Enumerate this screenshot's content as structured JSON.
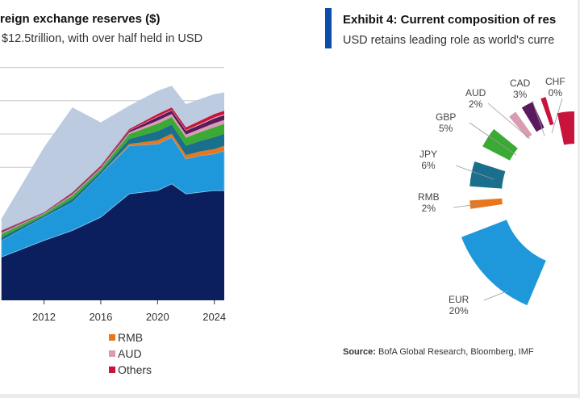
{
  "chart_data": [
    {
      "type": "area",
      "stacked": true,
      "title": "reign exchange reserves ($)",
      "subtitle": "$12.5trillion, with over half held in USD",
      "xlabel": "",
      "ylabel": "",
      "x_ticks": [
        "2012",
        "2016",
        "2020",
        "2024"
      ],
      "xlim": [
        2008.9,
        2024.7
      ],
      "ylim": [
        0,
        14
      ],
      "grid": true,
      "legend_placement": "bottom",
      "x": [
        2009,
        2012,
        2014,
        2016,
        2018,
        2020,
        2021,
        2022,
        2023,
        2024,
        2024.7
      ],
      "series": [
        {
          "color": "#0b1f5e",
          "values": [
            2.6,
            3.6,
            4.2,
            5.0,
            6.4,
            6.6,
            7.0,
            6.4,
            6.5,
            6.6,
            6.6
          ]
        },
        {
          "color": "#1e98da",
          "values": [
            1.0,
            1.4,
            1.7,
            2.6,
            2.9,
            2.8,
            2.8,
            2.1,
            2.2,
            2.2,
            2.4
          ]
        },
        {
          "name": "RMB",
          "color": "#e8761c",
          "values": [
            0,
            0,
            0,
            0,
            0.1,
            0.22,
            0.22,
            0.23,
            0.25,
            0.29,
            0.29
          ]
        },
        {
          "color": "#1a6f8c",
          "values": [
            0.2,
            0.1,
            0.2,
            0.15,
            0.3,
            0.55,
            0.55,
            0.57,
            0.63,
            0.72,
            0.72
          ]
        },
        {
          "color": "#3aaa35",
          "values": [
            0.2,
            0.1,
            0.2,
            0.15,
            0.3,
            0.45,
            0.45,
            0.48,
            0.53,
            0.6,
            0.6
          ]
        },
        {
          "name": "AUD",
          "color": "#d99cb2",
          "values": [
            0.07,
            0.03,
            0.07,
            0.06,
            0.1,
            0.18,
            0.18,
            0.19,
            0.2,
            0.24,
            0.24
          ]
        },
        {
          "color": "#5b1a60",
          "values": [
            0.07,
            0.03,
            0.07,
            0.06,
            0.1,
            0.22,
            0.22,
            0.23,
            0.25,
            0.29,
            0.29
          ]
        },
        {
          "color": "#f0c8a0",
          "values": [
            0.01,
            0.01,
            0.01,
            0.01,
            0.02,
            0.03,
            0.03,
            0.03,
            0.04,
            0.05,
            0.05
          ]
        },
        {
          "name": "Others",
          "color": "#c8143c",
          "values": [
            0.05,
            0.03,
            0.05,
            0.07,
            0.08,
            0.15,
            0.15,
            0.17,
            0.2,
            0.21,
            0.21
          ]
        },
        {
          "color": "#bccbe0",
          "values": [
            0.7,
            3.9,
            5.1,
            2.6,
            1.4,
            1.4,
            1.3,
            1.4,
            1.3,
            1.2,
            1.1
          ]
        }
      ],
      "legend": [
        {
          "label": "RMB",
          "color": "#e8761c"
        },
        {
          "label": "AUD",
          "color": "#d99cb2"
        },
        {
          "label": "Others",
          "color": "#c8143c"
        }
      ]
    },
    {
      "type": "pie",
      "title": "Exhibit 4: Current composition of res",
      "subtitle": "USD retains leading role as world's curre",
      "source_label": "Source:",
      "source_text": "BofA Global Research, Bloomberg, IMF",
      "slices": [
        {
          "name": "EUR",
          "value_label": "20%",
          "value": 20,
          "color": "#1e98da"
        },
        {
          "name": "RMB",
          "value_label": "2%",
          "value": 2,
          "color": "#e8761c"
        },
        {
          "name": "JPY",
          "value_label": "6%",
          "value": 6,
          "color": "#1a6f8c"
        },
        {
          "name": "GBP",
          "value_label": "5%",
          "value": 5,
          "color": "#3aaa35"
        },
        {
          "name": "AUD",
          "value_label": "2%",
          "value": 2,
          "color": "#d99cb2"
        },
        {
          "name": "CAD",
          "value_label": "3%",
          "value": 3,
          "color": "#5b1a60"
        },
        {
          "name": "CHF",
          "value_label": "0%",
          "value": 0,
          "color": "#c8143c"
        }
      ]
    }
  ]
}
